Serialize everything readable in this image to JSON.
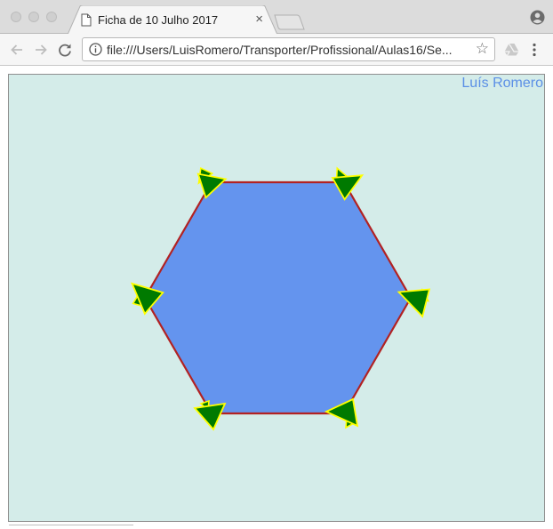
{
  "browser": {
    "tab": {
      "title": "Ficha de 10 Julho 2017",
      "close_glyph": "×"
    },
    "address_bar": {
      "url": "file:///Users/LuisRomero/Transporter/Profissional/Aulas16/Se..."
    },
    "icons": {
      "page": "document-icon",
      "profile": "account-circle-icon",
      "back": "arrow-left-icon",
      "forward": "arrow-right-icon",
      "reload": "reload-icon",
      "info": "info-icon",
      "bookmark": "star-icon",
      "extension": "drive-icon",
      "menu": "kebab-menu-icon"
    }
  },
  "page": {
    "author": "Luís Romero",
    "colors": {
      "background": "#d4ece9",
      "hexagon_fill": "#6494ee",
      "hexagon_stroke": "#b22222",
      "arrow_fill": "#007a00",
      "arrow_stroke": "#ffff00",
      "author_text": "#5b8fe6"
    },
    "shapes": {
      "hexagon": "regular hexagon",
      "vertex_markers": 6
    }
  }
}
